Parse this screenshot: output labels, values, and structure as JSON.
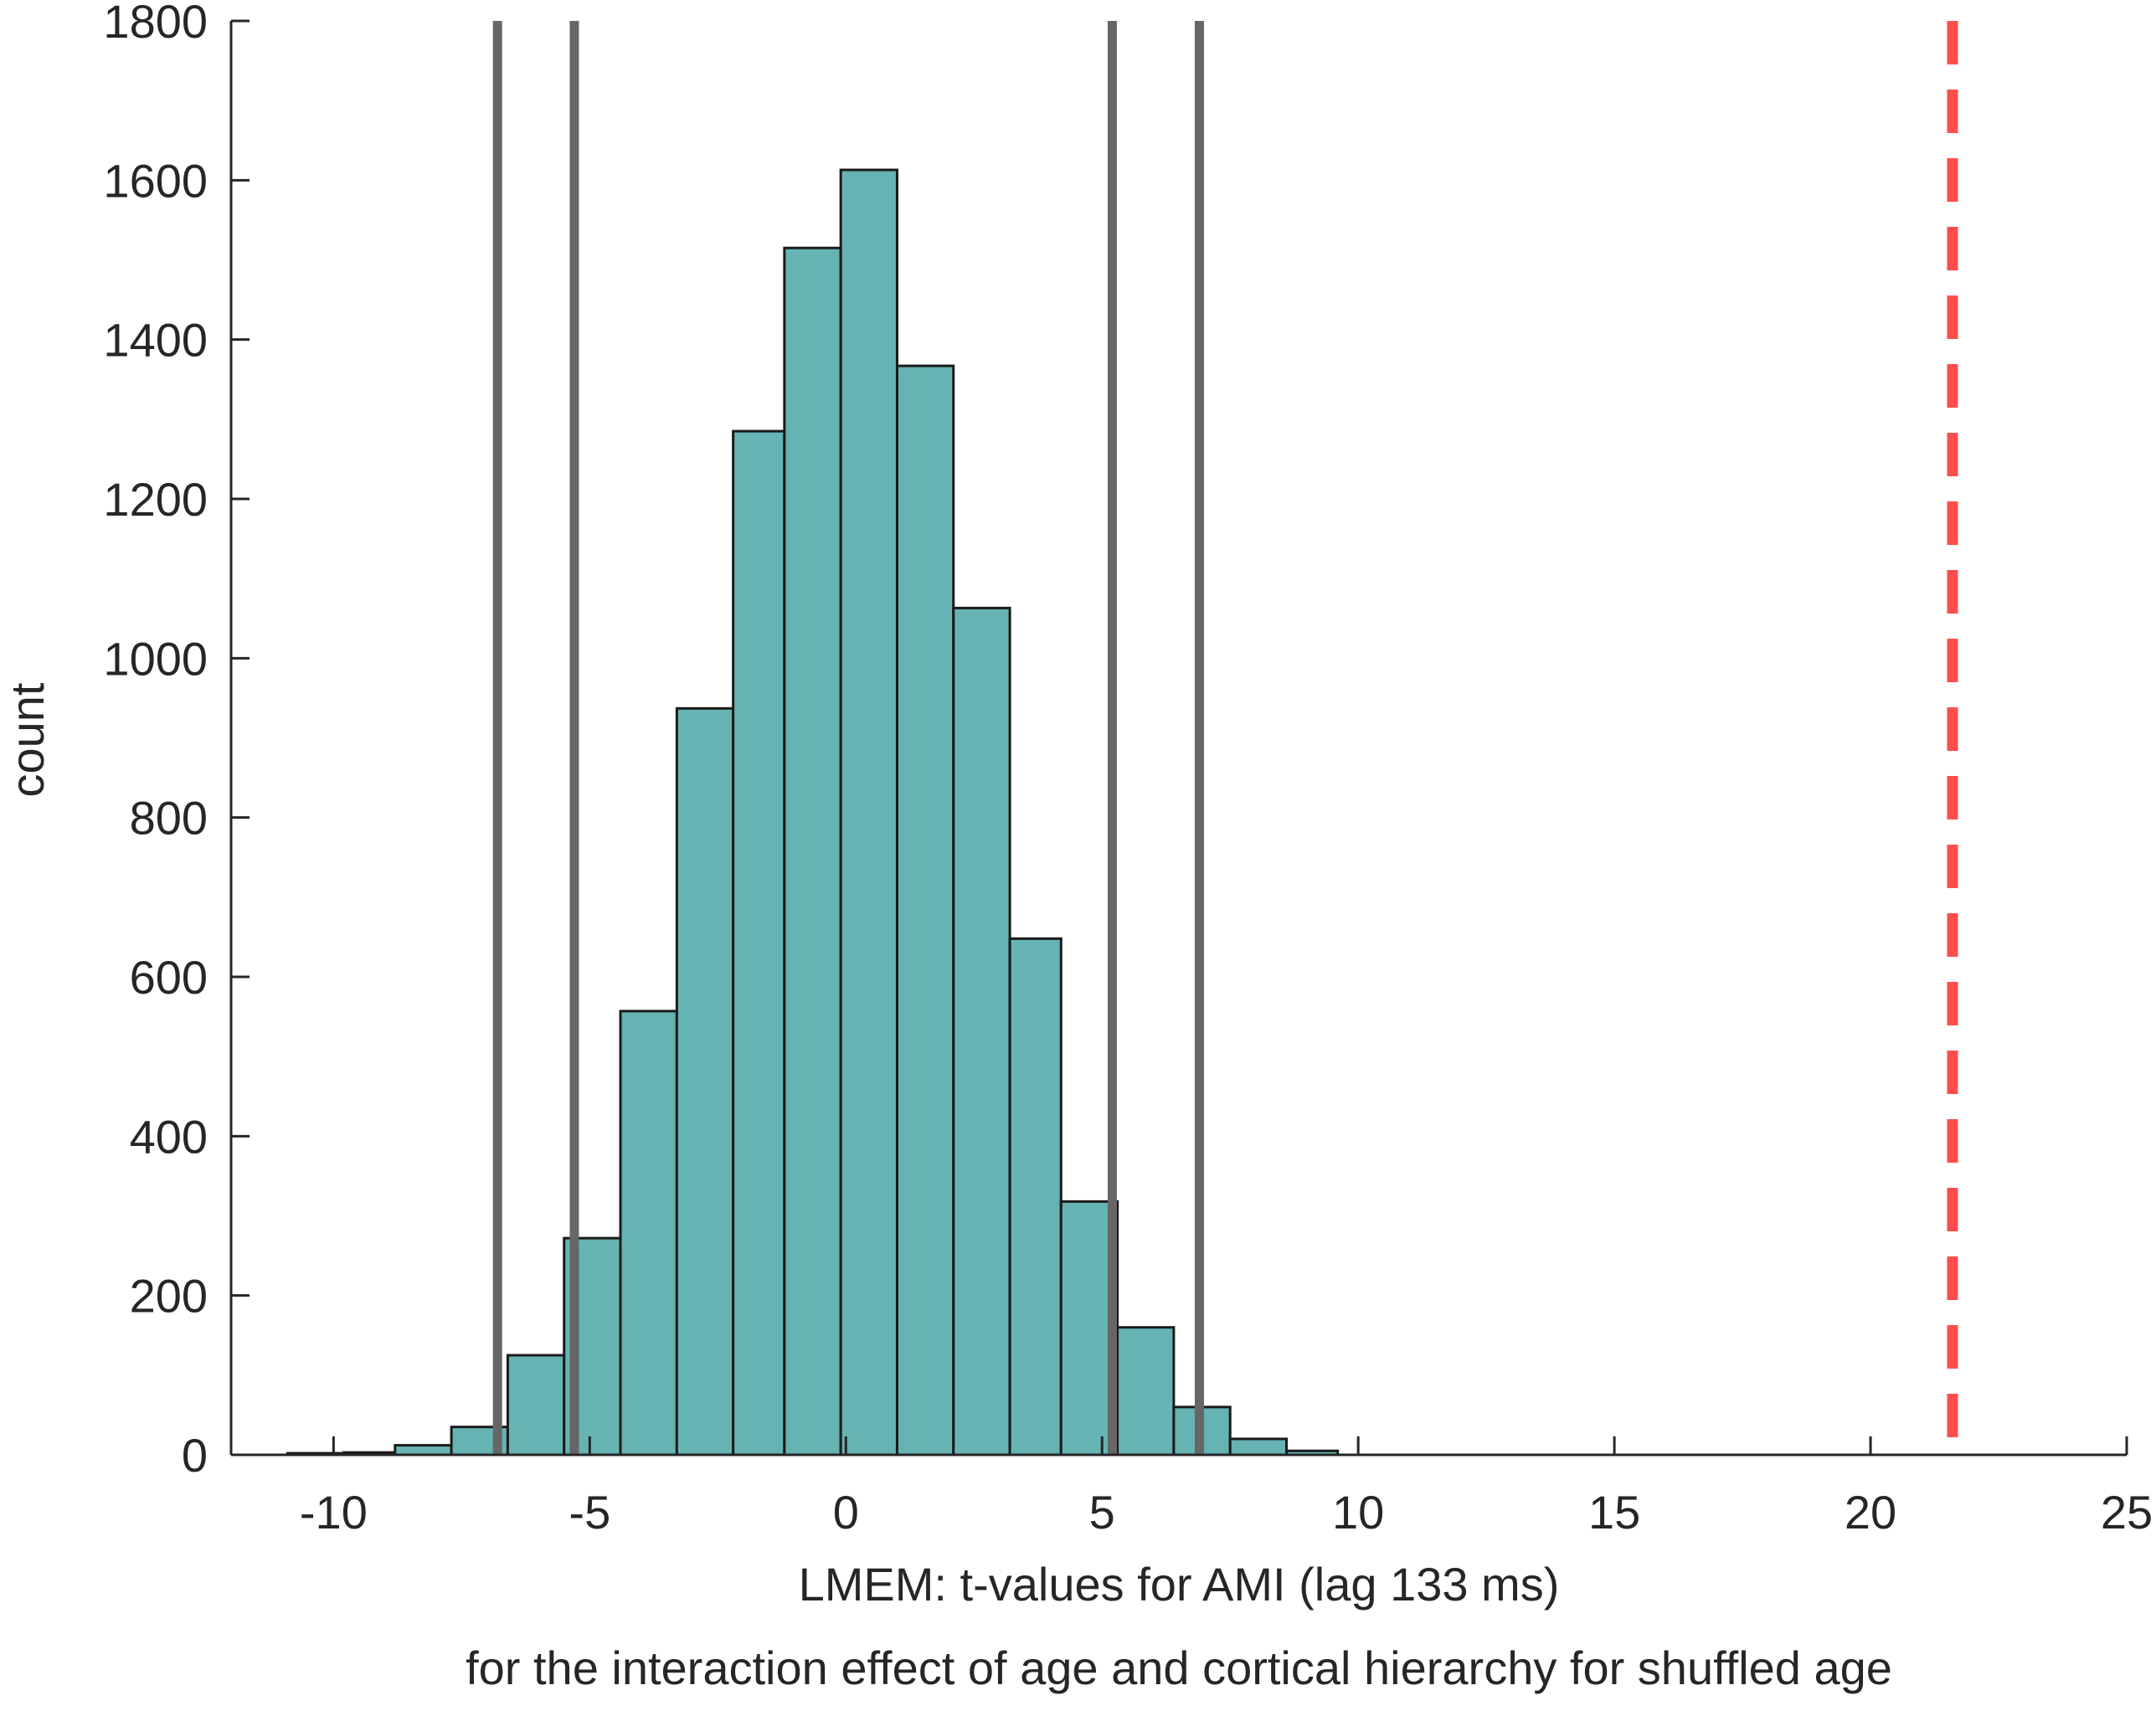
{
  "chart_data": {
    "type": "bar",
    "title": "",
    "xlabel": "LMEM: t-values for AMI (lag 133 ms)",
    "xlabel_line2": "for the interaction effect of age and cortical hierarchy for shuffled age",
    "ylabel": "count",
    "xlim": [
      -12,
      25
    ],
    "ylim": [
      0,
      1800
    ],
    "xticks": [
      -10,
      -5,
      0,
      5,
      10,
      15,
      20,
      25
    ],
    "yticks": [
      0,
      200,
      400,
      600,
      800,
      1000,
      1200,
      1400,
      1600,
      1800
    ],
    "xtick_labels": [
      "-10",
      "-5",
      "0",
      "5",
      "10",
      "15",
      "20",
      "25"
    ],
    "ytick_labels": [
      "0",
      "200",
      "400",
      "600",
      "800",
      "1000",
      "1200",
      "1400",
      "1600",
      "1800"
    ],
    "bar_color": "#66b3b3",
    "bar_edge_color": "#1a1a1a",
    "bin_edges": [
      -10.9,
      -9.8,
      -8.8,
      -7.7,
      -6.6,
      -5.5,
      -4.4,
      -3.3,
      -2.2,
      -1.2,
      -0.1,
      1.0,
      2.1,
      3.2,
      4.2,
      5.3,
      6.4,
      7.5,
      8.6,
      9.6
    ],
    "counts": [
      2,
      3,
      12,
      35,
      125,
      272,
      557,
      937,
      1285,
      1515,
      1613,
      1367,
      1063,
      648,
      318,
      160,
      60,
      20,
      5
    ],
    "grid": false,
    "reference_lines": [
      {
        "x": -6.8,
        "style": "solid",
        "color": "#666666"
      },
      {
        "x": -5.3,
        "style": "solid",
        "color": "#666666"
      },
      {
        "x": 5.2,
        "style": "solid",
        "color": "#666666"
      },
      {
        "x": 6.9,
        "style": "solid",
        "color": "#666666"
      },
      {
        "x": 21.6,
        "style": "dashed",
        "color": "#ff4d4d"
      }
    ]
  }
}
